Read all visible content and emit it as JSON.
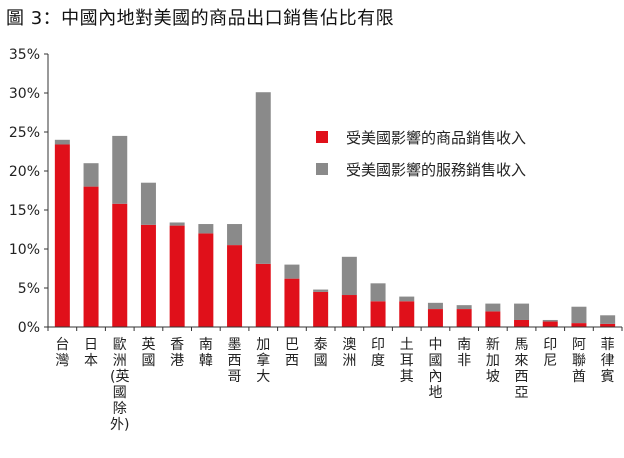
{
  "title": "圖 3：中國內地對美國的商品出口銷售佔比有限",
  "chart_data": {
    "type": "bar",
    "stacked": true,
    "categories": [
      "台灣",
      "日本",
      "歐洲(英國除外)",
      "英國",
      "香港",
      "南韓",
      "墨西哥",
      "加拿大",
      "巴西",
      "泰國",
      "澳洲",
      "印度",
      "土耳其",
      "中國內地",
      "南非",
      "新加坡",
      "馬來西亞",
      "印尼",
      "阿聯酋",
      "菲律賓"
    ],
    "category_lines": [
      [
        "台",
        "灣"
      ],
      [
        "日",
        "本"
      ],
      [
        "歐",
        "洲",
        "(英",
        "國",
        "除",
        "外)"
      ],
      [
        "英",
        "國"
      ],
      [
        "香",
        "港"
      ],
      [
        "南",
        "韓"
      ],
      [
        "墨",
        "西",
        "哥"
      ],
      [
        "加",
        "拿",
        "大"
      ],
      [
        "巴",
        "西"
      ],
      [
        "泰",
        "國"
      ],
      [
        "澳",
        "洲"
      ],
      [
        "印",
        "度"
      ],
      [
        "土",
        "耳",
        "其"
      ],
      [
        "中",
        "國",
        "內",
        "地"
      ],
      [
        "南",
        "非"
      ],
      [
        "新",
        "加",
        "坡"
      ],
      [
        "馬",
        "來",
        "西",
        "亞"
      ],
      [
        "印",
        "尼"
      ],
      [
        "阿",
        "聯",
        "酋"
      ],
      [
        "菲",
        "律",
        "賓"
      ]
    ],
    "series": [
      {
        "name": "受美國影響的商品銷售收入",
        "color": "#e0101a",
        "values": [
          23.4,
          18.0,
          15.8,
          13.1,
          13.0,
          12.0,
          10.5,
          8.1,
          6.2,
          4.5,
          4.1,
          3.3,
          3.3,
          2.3,
          2.3,
          2.0,
          0.9,
          0.7,
          0.5,
          0.4
        ]
      },
      {
        "name": "受美國影響的服務銷售收入",
        "color": "#8a8a8a",
        "values": [
          0.6,
          3.0,
          8.7,
          5.4,
          0.4,
          1.2,
          2.7,
          22.0,
          1.8,
          0.3,
          4.9,
          2.3,
          0.6,
          0.8,
          0.5,
          1.0,
          2.1,
          0.2,
          2.1,
          1.1
        ]
      }
    ],
    "ylim": [
      0,
      35
    ],
    "yticks": [
      "0%",
      "5%",
      "10%",
      "15%",
      "20%",
      "25%",
      "30%",
      "35%"
    ],
    "grid": false,
    "legend_position": "upper-right"
  }
}
